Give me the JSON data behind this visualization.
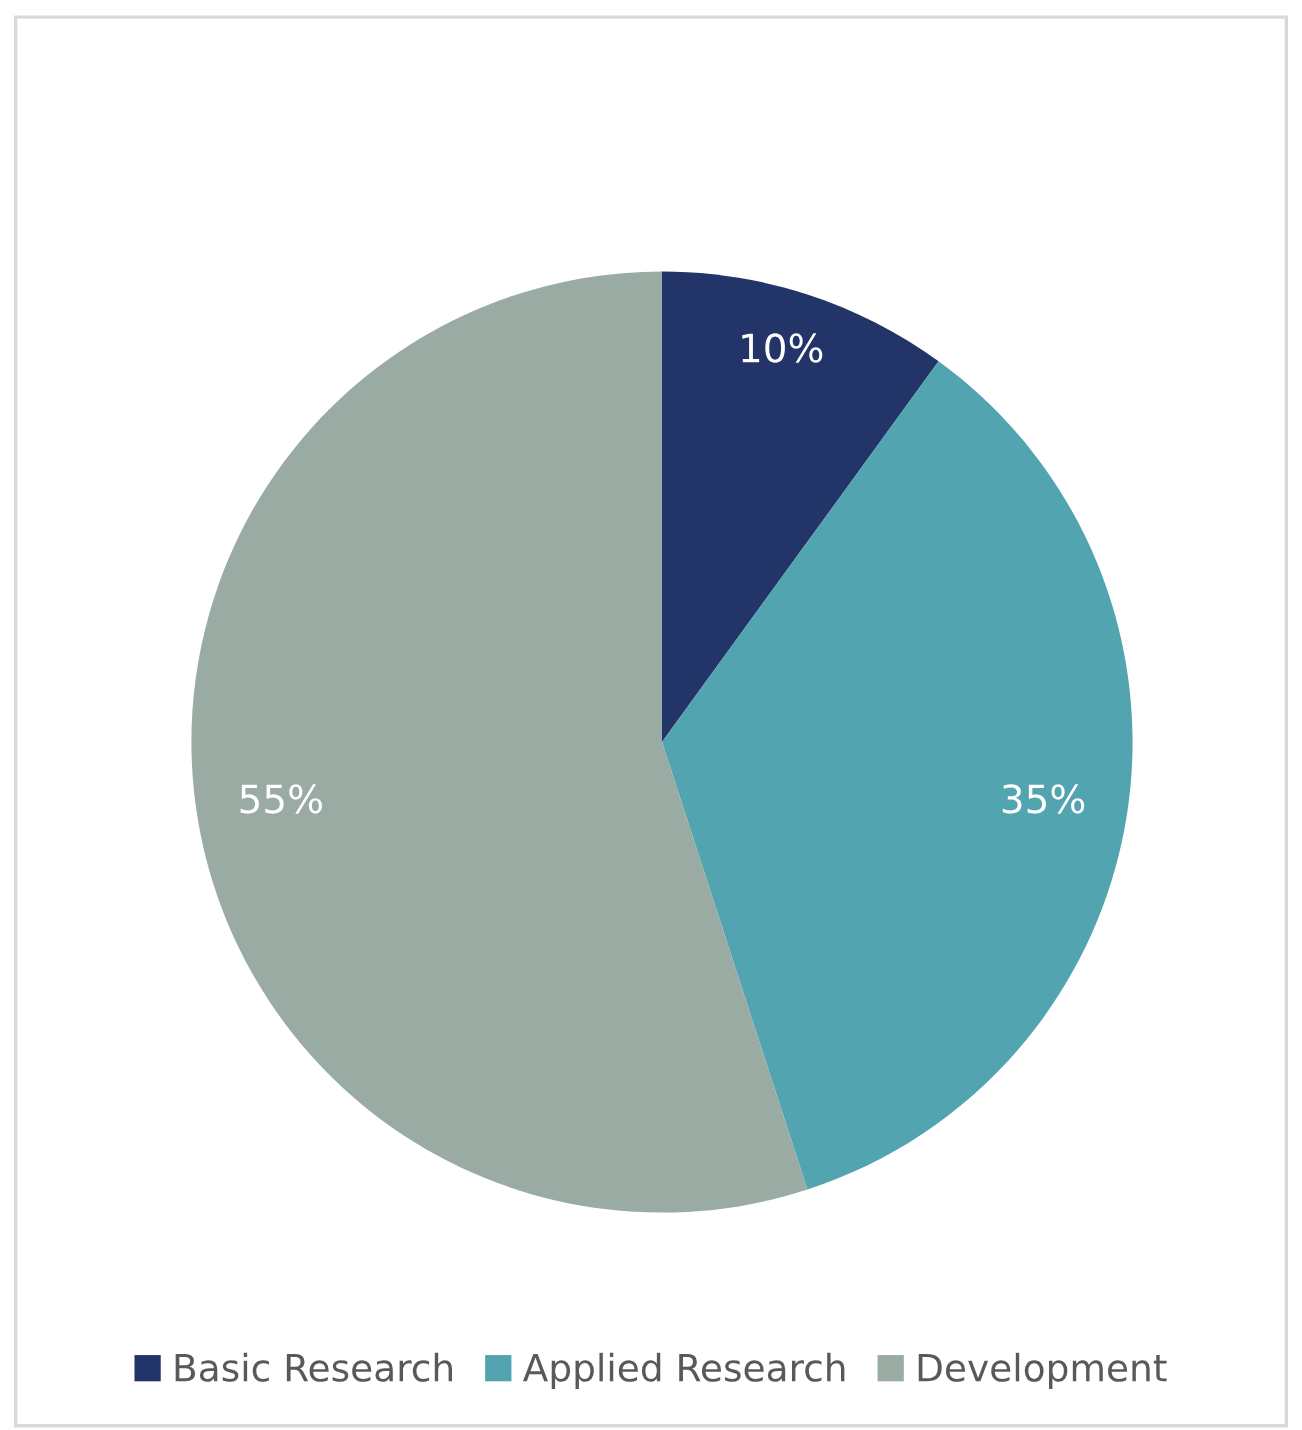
{
  "chart_data": {
    "type": "pie",
    "categories": [
      "Basic Research",
      "Applied Research",
      "Development"
    ],
    "values": [
      10,
      35,
      55
    ],
    "colors": [
      "#233469",
      "#52a5b0",
      "#9aaba4"
    ],
    "value_labels": [
      "10%",
      "35%",
      "55%"
    ],
    "legend": "bottom"
  }
}
